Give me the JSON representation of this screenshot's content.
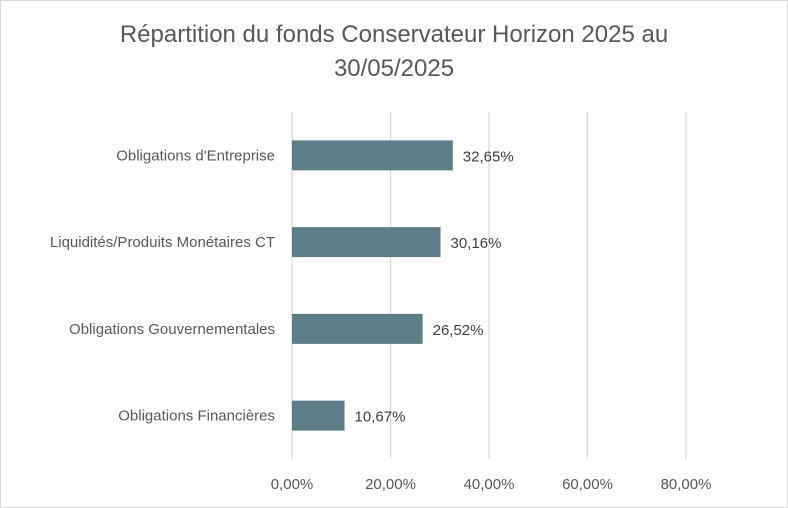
{
  "chart_data": {
    "type": "bar",
    "orientation": "horizontal",
    "title_line1": "Répartition du fonds Conservateur Horizon 2025 au",
    "title_line2": "30/05/2025",
    "categories": [
      "Obligations d'Entreprise",
      "Liquidités/Produits Monétaires CT",
      "Obligations Gouvernementales",
      "Obligations Financières"
    ],
    "values": [
      32.65,
      30.16,
      26.52,
      10.67
    ],
    "value_labels": [
      "32,65%",
      "30,16%",
      "26,52%",
      "10,67%"
    ],
    "xlim": [
      0,
      80
    ],
    "x_ticks": [
      0,
      20,
      40,
      60,
      80
    ],
    "x_tick_labels": [
      "0,00%",
      "20,00%",
      "40,00%",
      "60,00%",
      "80,00%"
    ],
    "grid": "vertical",
    "legend": "none",
    "bar_color": "#5f7d87",
    "grid_color": "#d9d9d9"
  }
}
